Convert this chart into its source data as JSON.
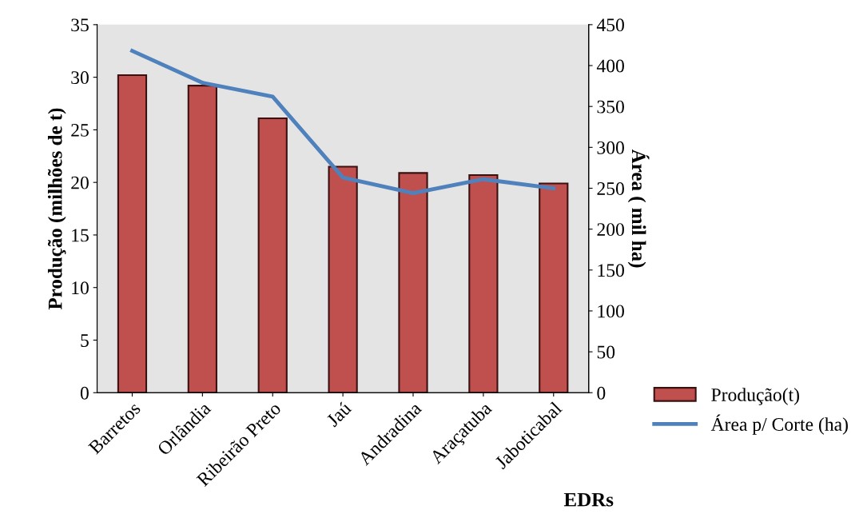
{
  "chart_data": {
    "type": "bar",
    "xlabel": "EDRs",
    "ylabel": "Produção (milhões de t)",
    "y2label": "Área ( mil ha)",
    "categories": [
      "Barretos",
      "Orlândia",
      "Ribeirão Preto",
      "Jaú",
      "Andradina",
      "Araçatuba",
      "Jaboticabal"
    ],
    "series": [
      {
        "name": "Produção(t)",
        "color": "#c0504d",
        "values": [
          30.2,
          29.2,
          26.1,
          21.5,
          20.9,
          20.7,
          19.9
        ]
      },
      {
        "name": "Área p/ Corte (ha)",
        "type": "line",
        "axis": "y2",
        "color": "#4f81bd",
        "values": [
          418,
          379,
          362,
          263,
          244,
          261,
          250
        ]
      }
    ],
    "ylim": [
      0,
      35
    ],
    "yticks": [
      0,
      5,
      10,
      15,
      20,
      25,
      30,
      35
    ],
    "y2lim": [
      0,
      450
    ],
    "y2ticks": [
      0,
      50,
      100,
      150,
      200,
      250,
      300,
      350,
      400,
      450
    ],
    "grid": false,
    "legend": "right",
    "marker": "none",
    "line_style": "solid"
  }
}
